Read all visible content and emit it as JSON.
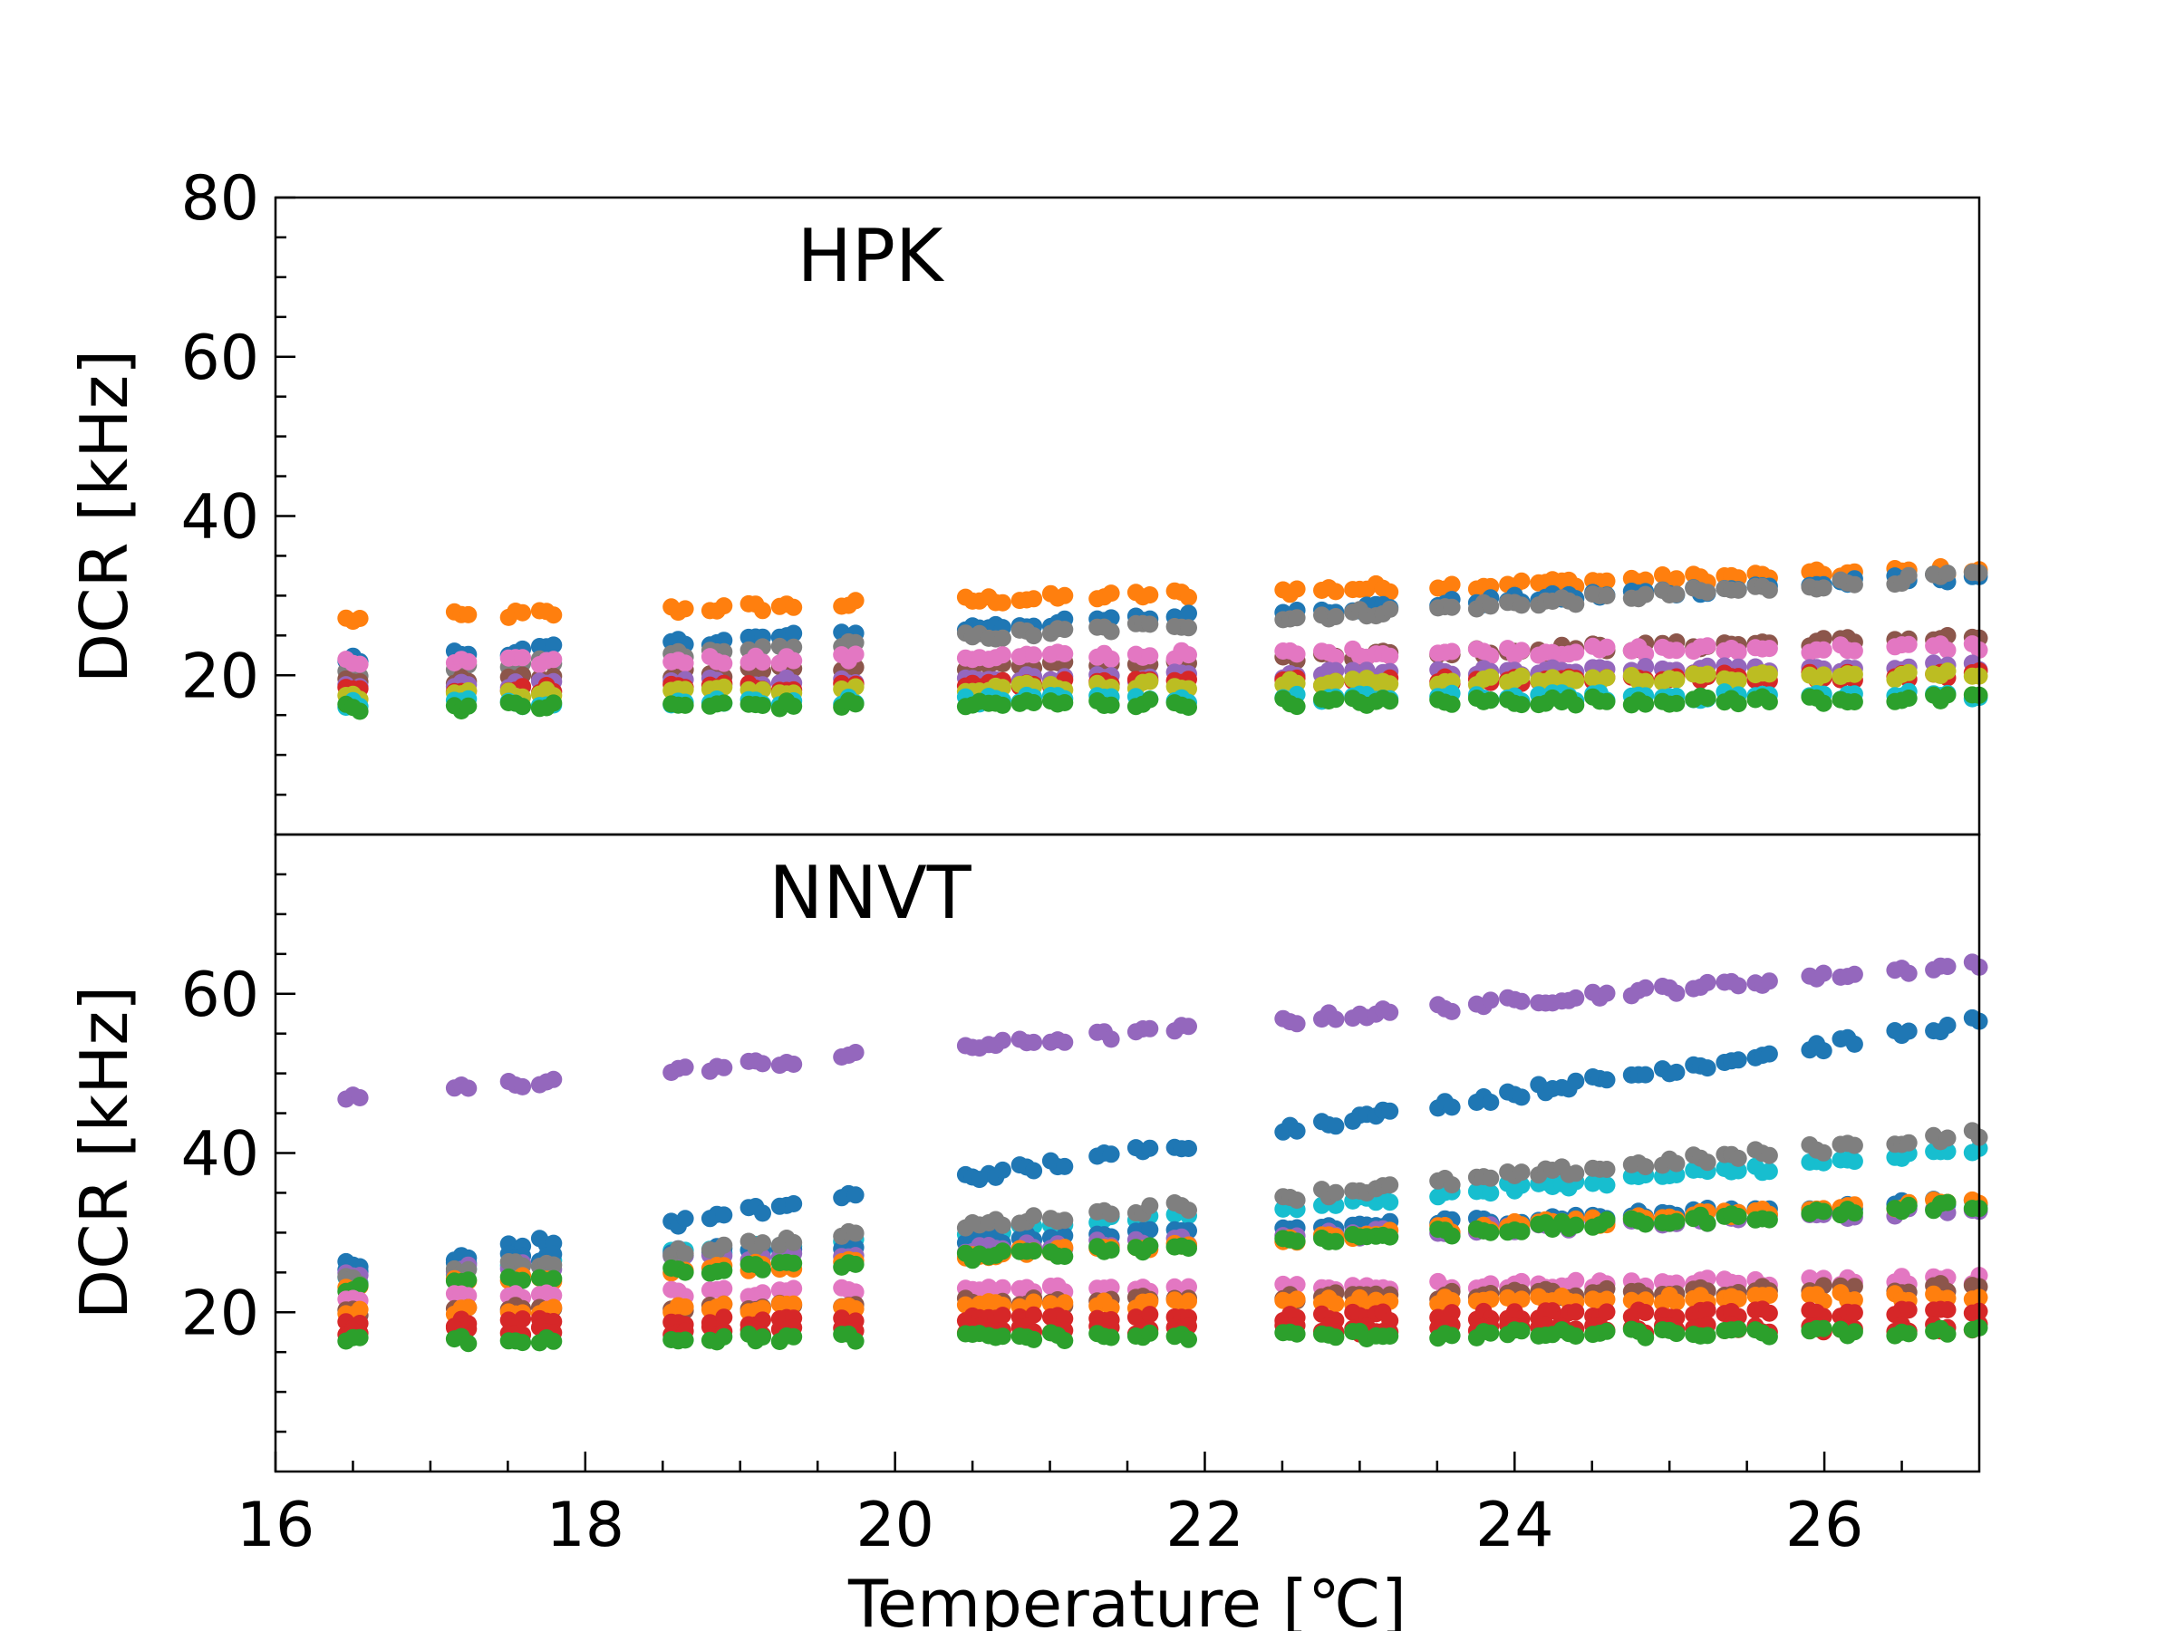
{
  "chart_data": {
    "type": "scatter",
    "shared_x": {
      "label": "Temperature [℃]",
      "range": [
        16,
        27
      ],
      "ticks": [
        16,
        18,
        20,
        22,
        24,
        26
      ],
      "minor_step": 0.5
    },
    "temperatures": [
      16.5,
      17.2,
      17.55,
      17.75,
      18.6,
      18.85,
      19.1,
      19.3,
      19.7,
      20.5,
      20.65,
      20.85,
      21.05,
      21.35,
      21.6,
      21.85,
      22.55,
      22.8,
      23.0,
      23.15,
      23.55,
      23.8,
      24.0,
      24.2,
      24.35,
      24.55,
      24.8,
      25.0,
      25.2,
      25.4,
      25.6,
      25.95,
      26.15,
      26.5,
      26.75,
      27.0
    ],
    "colors": [
      "#1f77b4",
      "#ff7f0e",
      "#2ca02c",
      "#d62728",
      "#9467bd",
      "#8c564b",
      "#e377c2",
      "#7f7f7f",
      "#bcbd22",
      "#17becf"
    ],
    "panels": [
      {
        "label": "HPK",
        "ylabel": "DCR [kHz]",
        "ylim": [
          0,
          80
        ],
        "yticks": [
          20,
          40,
          60,
          80
        ],
        "minor_step": 5,
        "series": [
          {
            "color_index": 1,
            "base": 27.0,
            "slope": 0.6
          },
          {
            "color_index": 0,
            "base": 22.0,
            "slope": 1.0
          },
          {
            "color_index": 7,
            "base": 20.0,
            "slope": 1.2
          },
          {
            "color_index": 5,
            "base": 19.0,
            "slope": 0.55
          },
          {
            "color_index": 6,
            "base": 21.5,
            "slope": 0.2
          },
          {
            "color_index": 4,
            "base": 18.5,
            "slope": 0.25
          },
          {
            "color_index": 3,
            "base": 18.0,
            "slope": 0.2
          },
          {
            "color_index": 8,
            "base": 17.5,
            "slope": 0.25
          },
          {
            "color_index": 9,
            "base": 16.5,
            "slope": 0.1
          },
          {
            "color_index": 2,
            "base": 16.0,
            "slope": 0.1
          }
        ]
      },
      {
        "label": "NNVT",
        "ylabel": "DCR [kHz]",
        "ylim": [
          0,
          80
        ],
        "yticks": [
          20,
          40,
          60
        ],
        "minor_step": 5,
        "series": [
          {
            "color_index": 4,
            "base": 47.0,
            "slope": 1.6
          },
          {
            "color_index": 0,
            "base": 25.0,
            "slope": 3.0
          },
          {
            "color_index": 9,
            "base": 24.0,
            "slope": 1.55
          },
          {
            "color_index": 0,
            "base": 26.0,
            "slope": 0.75
          },
          {
            "color_index": 4,
            "base": 25.0,
            "slope": 0.75
          },
          {
            "color_index": 7,
            "base": 24.0,
            "slope": 1.75
          },
          {
            "color_index": 1,
            "base": 23.0,
            "slope": 1.05
          },
          {
            "color_index": 2,
            "base": 23.0,
            "slope": 1.0
          },
          {
            "color_index": 6,
            "base": 22.0,
            "slope": 0.2
          },
          {
            "color_index": 5,
            "base": 20.0,
            "slope": 0.3
          },
          {
            "color_index": 1,
            "base": 20.0,
            "slope": 0.2
          },
          {
            "color_index": 3,
            "base": 18.5,
            "slope": 0.15
          },
          {
            "color_index": 3,
            "base": 17.5,
            "slope": 0.05
          },
          {
            "color_index": 2,
            "base": 16.5,
            "slope": 0.1
          }
        ]
      }
    ]
  }
}
